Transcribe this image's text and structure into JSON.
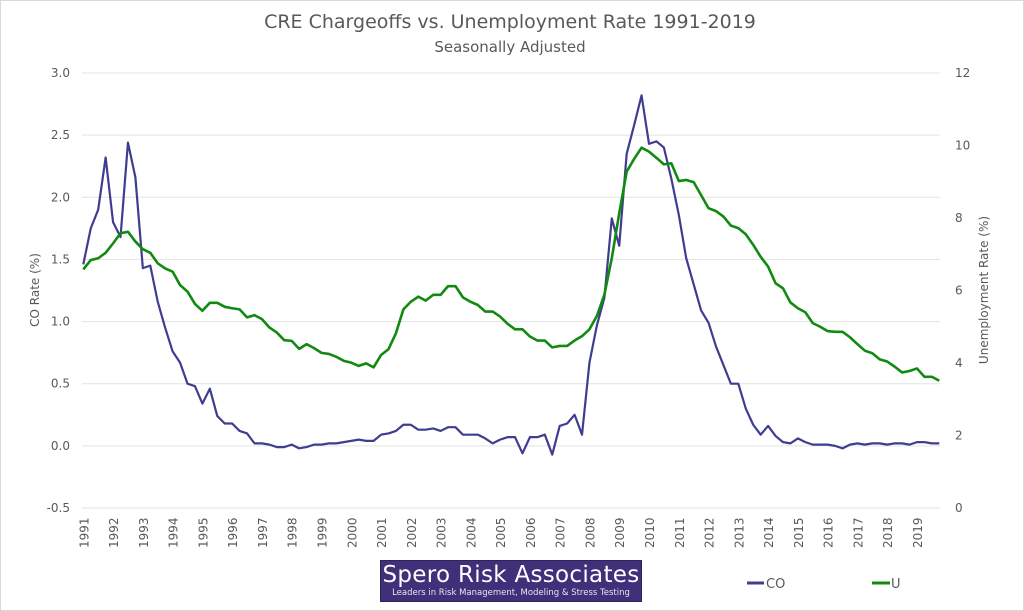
{
  "chart_data": {
    "type": "line",
    "title": "CRE Chargeoffs vs. Unemployment Rate 1991-2019",
    "subtitle": "Seasonally Adjusted",
    "frequency": "quarterly",
    "x_start": "1991Q1",
    "x_end": "2019Q4",
    "x_tick_labels": [
      "1991",
      "1992",
      "1993",
      "1994",
      "1995",
      "1996",
      "1997",
      "1998",
      "1999",
      "2000",
      "2001",
      "2002",
      "2003",
      "2004",
      "2005",
      "2006",
      "2007",
      "2008",
      "2009",
      "2010",
      "2011",
      "2012",
      "2013",
      "2014",
      "2015",
      "2016",
      "2017",
      "2018",
      "2019"
    ],
    "ylabel": "CO Rate (%)",
    "ylim": [
      -0.5,
      3.0
    ],
    "y_ticks": [
      "-0.5",
      "0.0",
      "0.5",
      "1.0",
      "1.5",
      "2.0",
      "2.5",
      "3.0"
    ],
    "y2label": "Unemployment Rate (%)",
    "y2lim": [
      0,
      12
    ],
    "y2_ticks": [
      "0",
      "2",
      "4",
      "6",
      "8",
      "10",
      "12"
    ],
    "grid": true,
    "legend_position": "bottom-right",
    "series": [
      {
        "name": "CO",
        "axis": "left",
        "color": "#3f3d8f",
        "values": [
          1.46,
          1.75,
          1.9,
          2.32,
          1.8,
          1.68,
          2.44,
          2.16,
          1.43,
          1.45,
          1.16,
          0.95,
          0.76,
          0.67,
          0.5,
          0.48,
          0.34,
          0.46,
          0.24,
          0.18,
          0.18,
          0.12,
          0.1,
          0.02,
          0.02,
          0.01,
          -0.01,
          -0.01,
          0.01,
          -0.02,
          -0.01,
          0.01,
          0.01,
          0.02,
          0.02,
          0.03,
          0.04,
          0.05,
          0.04,
          0.04,
          0.09,
          0.1,
          0.12,
          0.17,
          0.17,
          0.13,
          0.13,
          0.14,
          0.12,
          0.15,
          0.15,
          0.09,
          0.09,
          0.09,
          0.06,
          0.02,
          0.05,
          0.07,
          0.07,
          -0.06,
          0.07,
          0.07,
          0.09,
          -0.07,
          0.16,
          0.18,
          0.25,
          0.09,
          0.67,
          0.97,
          1.19,
          1.83,
          1.61,
          2.35,
          2.58,
          2.82,
          2.43,
          2.45,
          2.4,
          2.15,
          1.86,
          1.51,
          1.3,
          1.09,
          0.99,
          0.8,
          0.65,
          0.5,
          0.5,
          0.3,
          0.17,
          0.09,
          0.16,
          0.08,
          0.03,
          0.02,
          0.06,
          0.03,
          0.01,
          0.01,
          0.01,
          0.0,
          -0.02,
          0.01,
          0.02,
          0.01,
          0.02,
          0.02,
          0.01,
          0.02,
          0.02,
          0.01,
          0.03,
          0.03,
          0.02,
          0.02
        ]
      },
      {
        "name": "U",
        "axis": "right",
        "color": "#118a11",
        "values": [
          6.58,
          6.84,
          6.89,
          7.04,
          7.3,
          7.58,
          7.62,
          7.35,
          7.14,
          7.04,
          6.75,
          6.61,
          6.52,
          6.15,
          5.97,
          5.63,
          5.44,
          5.66,
          5.66,
          5.55,
          5.51,
          5.48,
          5.26,
          5.32,
          5.21,
          4.98,
          4.84,
          4.63,
          4.61,
          4.39,
          4.52,
          4.41,
          4.28,
          4.25,
          4.17,
          4.06,
          4.01,
          3.92,
          3.99,
          3.88,
          4.22,
          4.38,
          4.82,
          5.48,
          5.69,
          5.83,
          5.72,
          5.88,
          5.88,
          6.12,
          6.12,
          5.81,
          5.69,
          5.6,
          5.42,
          5.42,
          5.28,
          5.08,
          4.93,
          4.93,
          4.73,
          4.62,
          4.62,
          4.43,
          4.47,
          4.47,
          4.62,
          4.74,
          4.93,
          5.3,
          5.88,
          6.89,
          8.13,
          9.28,
          9.63,
          9.94,
          9.83,
          9.66,
          9.48,
          9.51,
          9.02,
          9.05,
          8.99,
          8.63,
          8.27,
          8.19,
          8.04,
          7.79,
          7.72,
          7.55,
          7.26,
          6.93,
          6.66,
          6.2,
          6.06,
          5.67,
          5.51,
          5.4,
          5.1,
          5.0,
          4.88,
          4.86,
          4.86,
          4.71,
          4.52,
          4.34,
          4.27,
          4.1,
          4.04,
          3.9,
          3.74,
          3.78,
          3.85,
          3.62,
          3.62,
          3.51
        ]
      }
    ]
  },
  "logo": {
    "name": "Spero Risk Associates",
    "tagline": "Leaders in Risk Management, Modeling & Stress Testing",
    "background": "#3f3079"
  },
  "legend": [
    {
      "label": "CO",
      "color": "#3f3d8f"
    },
    {
      "label": "U",
      "color": "#118a11"
    }
  ]
}
